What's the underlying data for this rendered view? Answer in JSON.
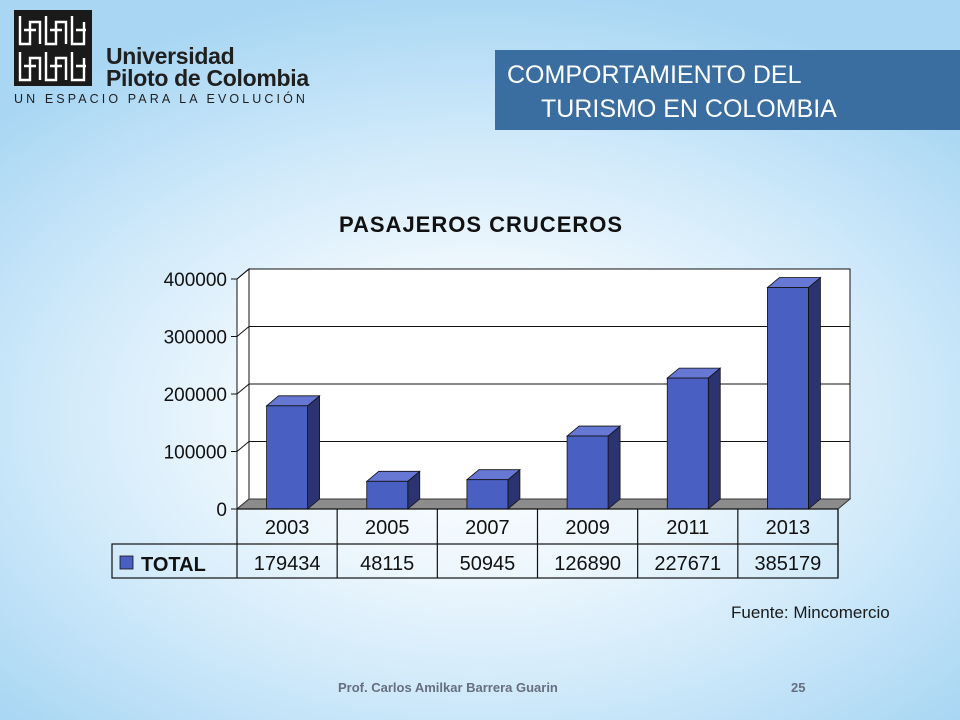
{
  "logo": {
    "name_line1": "Universidad",
    "name_line2": "Piloto de Colombia",
    "tagline": "UN ESPACIO PARA LA EVOLUCIÓN"
  },
  "slide": {
    "title_line1": "COMPORTAMIENTO DEL",
    "title_line2": "TURISMO EN COLOMBIA",
    "source": "Fuente: Mincomercio",
    "author": "Prof. Carlos Amilkar Barrera Guarin",
    "page_number": "25"
  },
  "colors": {
    "title_box": "#3a6ea0",
    "bar_front": "#4a5fc2",
    "bar_side": "#2b3470",
    "bar_top": "#6677d4",
    "floor": "#8c8c8c"
  },
  "chart_data": {
    "type": "bar",
    "title": "PASAJEROS CRUCEROS",
    "categories": [
      "2003",
      "2005",
      "2007",
      "2009",
      "2011",
      "2013"
    ],
    "series": [
      {
        "name": "TOTAL",
        "values": [
          179434,
          48115,
          50945,
          126890,
          227671,
          385179
        ]
      }
    ],
    "value_labels": [
      "179434",
      "48115",
      "50945",
      "126890",
      "227671",
      "385179"
    ],
    "ylim": [
      0,
      400000
    ],
    "yticks": [
      0,
      100000,
      200000,
      300000,
      400000
    ],
    "ytick_labels": [
      "0",
      "100000",
      "200000",
      "300000",
      "400000"
    ],
    "grid": true,
    "data_table": true,
    "style": "3d-column"
  }
}
